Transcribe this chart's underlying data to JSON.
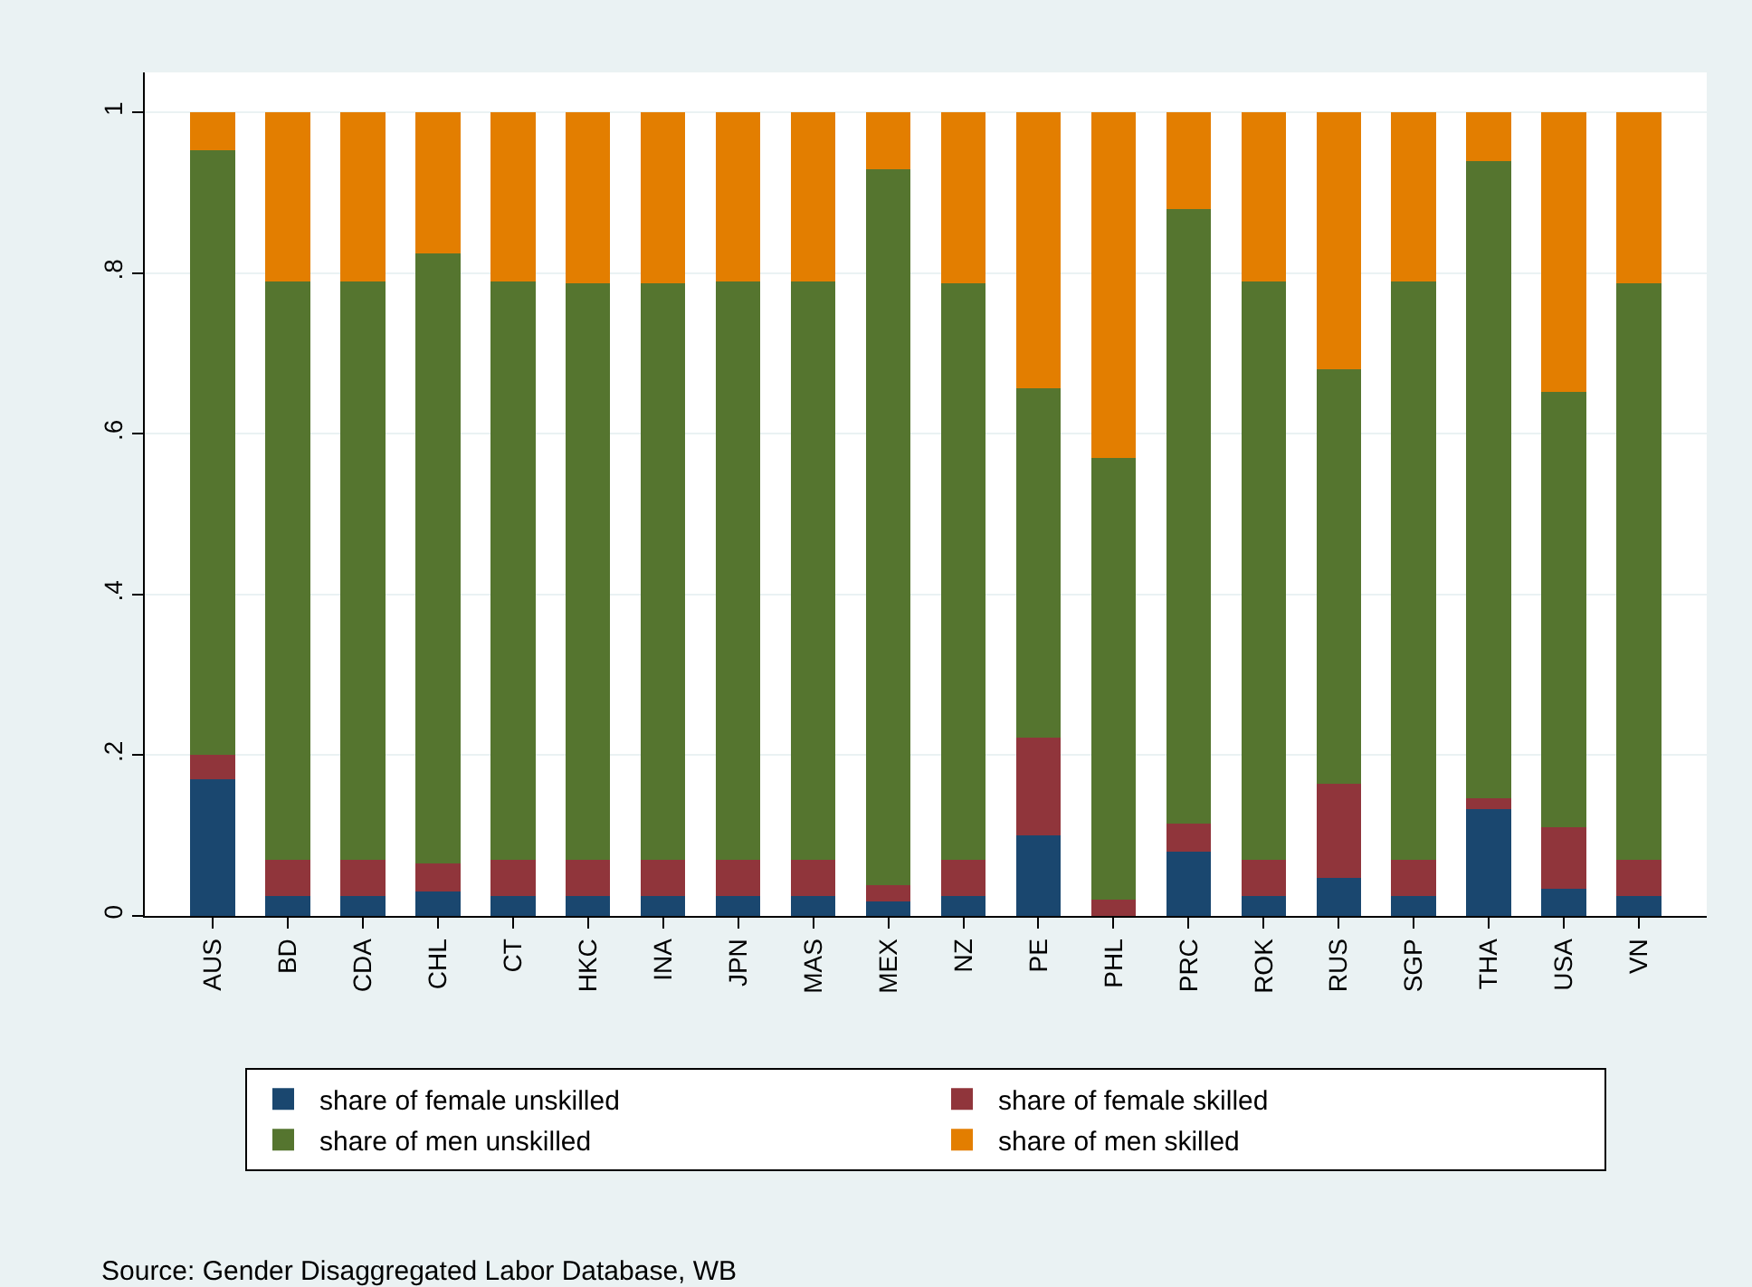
{
  "chart_data": {
    "type": "bar",
    "stacked": true,
    "categories": [
      "AUS",
      "BD",
      "CDA",
      "CHL",
      "CT",
      "HKC",
      "INA",
      "JPN",
      "MAS",
      "MEX",
      "NZ",
      "PE",
      "PHL",
      "PRC",
      "ROK",
      "RUS",
      "SGP",
      "THA",
      "USA",
      "VN"
    ],
    "series": [
      {
        "name": "share of female unskilled",
        "color": "#1a476f",
        "values": [
          0.17,
          0.025,
          0.025,
          0.03,
          0.025,
          0.025,
          0.025,
          0.025,
          0.025,
          0.018,
          0.025,
          0.1,
          0,
          0.08,
          0.025,
          0.047,
          0.025,
          0.133,
          0.034,
          0.025
        ]
      },
      {
        "name": "share of female skilled",
        "color": "#90353b",
        "values": [
          0.03,
          0.045,
          0.045,
          0.035,
          0.045,
          0.045,
          0.045,
          0.045,
          0.045,
          0.02,
          0.045,
          0.122,
          0.02,
          0.035,
          0.045,
          0.117,
          0.045,
          0.013,
          0.076,
          0.045
        ]
      },
      {
        "name": "share of men unskilled",
        "color": "#55752f",
        "values": [
          0.753,
          0.72,
          0.72,
          0.76,
          0.72,
          0.718,
          0.718,
          0.72,
          0.72,
          0.892,
          0.718,
          0.435,
          0.55,
          0.765,
          0.72,
          0.516,
          0.72,
          0.794,
          0.542,
          0.718
        ]
      },
      {
        "name": "share of men skilled",
        "color": "#e37e00",
        "values": [
          0.047,
          0.21,
          0.21,
          0.175,
          0.21,
          0.212,
          0.212,
          0.21,
          0.21,
          0.07,
          0.212,
          0.343,
          0.43,
          0.12,
          0.21,
          0.32,
          0.21,
          0.06,
          0.348,
          0.212
        ]
      }
    ],
    "ylim": [
      0,
      1.05
    ],
    "yticks": [
      0,
      {
        "value": 0.2,
        "label": ".2"
      },
      {
        "value": 0.4,
        "label": ".4"
      },
      {
        "value": 0.6,
        "label": ".6"
      },
      {
        "value": 0.8,
        "label": ".8"
      },
      1
    ],
    "grid": "y",
    "legend": "bottom",
    "annotations": [
      "Source: Gender Disaggregated Labor Database, WB"
    ]
  }
}
